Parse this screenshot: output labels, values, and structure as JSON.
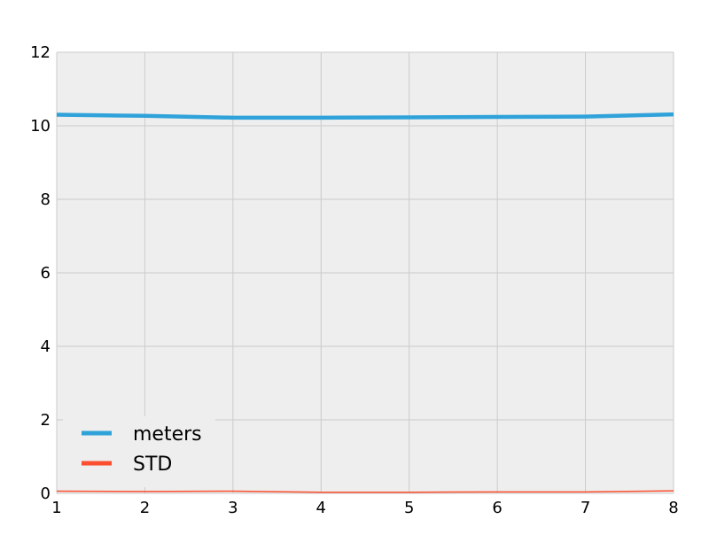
{
  "chart_data": {
    "type": "line",
    "title": "",
    "xlabel": "",
    "ylabel": "",
    "x": [
      1,
      2,
      3,
      4,
      5,
      6,
      7,
      8
    ],
    "xlim": [
      1,
      8
    ],
    "ylim": [
      0,
      12
    ],
    "xticks": [
      1,
      2,
      3,
      4,
      5,
      6,
      7,
      8
    ],
    "yticks": [
      0,
      2,
      4,
      6,
      8,
      10,
      12
    ],
    "grid": true,
    "legend_position": "lower-left",
    "background_color": "#eeeeee",
    "series": [
      {
        "name": "meters",
        "color": "#30a2da",
        "values": [
          10.3,
          10.27,
          10.22,
          10.22,
          10.23,
          10.24,
          10.25,
          10.31
        ]
      },
      {
        "name": "STD",
        "color": "#fc4f30",
        "values": [
          0.06,
          0.05,
          0.06,
          0.03,
          0.03,
          0.04,
          0.04,
          0.07
        ]
      }
    ]
  }
}
